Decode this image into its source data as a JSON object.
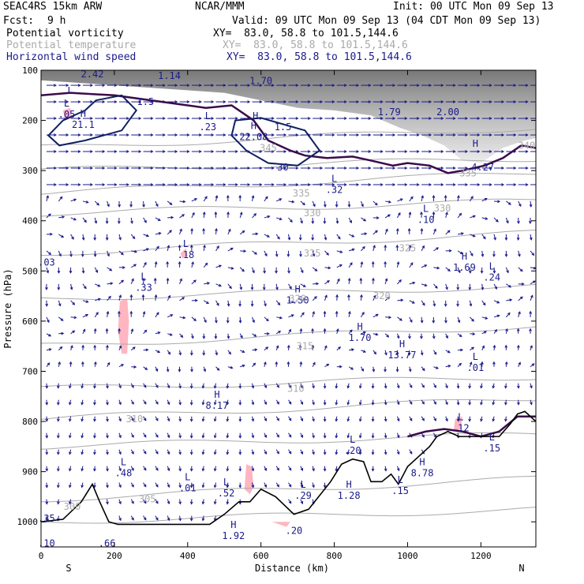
{
  "header": {
    "model": "SEAC4RS 15km ARW",
    "org": "NCAR/MMM",
    "init": "Init: 00 UTC Mon 09 Sep 13",
    "fcst_label": "Fcst:",
    "fcst_value": "9 h",
    "valid": "Valid: 09 UTC Mon 09 Sep 13 (04 CDT Mon 09 Sep 13)"
  },
  "fields": [
    {
      "name": "Potential vorticity",
      "xy": "XY=  83.0, 58.8 to 101.5,144.6",
      "color": "#000000"
    },
    {
      "name": "Potential temperature",
      "xy": "XY=  83.0, 58.8 to 101.5,144.6",
      "color": "#aaaaaa"
    },
    {
      "name": "Horizontal wind speed",
      "xy": "XY=  83.0, 58.8 to 101.5,144.6",
      "color": "#1a1a8c"
    }
  ],
  "colors": {
    "pv_contour": "#3a0a4a",
    "theta": "#aaaaaa",
    "wind": "#1a1a8c",
    "terrain": "#000000",
    "shading_pink": "#ffb6c1",
    "shading_gray": "#a0a0a0"
  },
  "chart_data": {
    "type": "cross-section",
    "xlabel": "Distance (km)",
    "ylabel": "Pressure (hPa)",
    "x_ticks": [
      0,
      200,
      400,
      600,
      800,
      1000,
      1200
    ],
    "y_ticks": [
      100,
      200,
      300,
      400,
      500,
      600,
      700,
      800,
      900,
      1000
    ],
    "xlim": [
      0,
      1350
    ],
    "ylim": [
      1050,
      100
    ],
    "endpoints": {
      "left": "S",
      "right": "N"
    },
    "theta_labels": [
      {
        "text": "345",
        "x": 620,
        "p": 255
      },
      {
        "text": "340",
        "x": 1325,
        "p": 250
      },
      {
        "text": "335",
        "x": 710,
        "p": 345
      },
      {
        "text": "335",
        "x": 1165,
        "p": 305
      },
      {
        "text": "330",
        "x": 740,
        "p": 385
      },
      {
        "text": "330",
        "x": 1095,
        "p": 375
      },
      {
        "text": "325",
        "x": 740,
        "p": 465
      },
      {
        "text": "325",
        "x": 1000,
        "p": 455
      },
      {
        "text": "320",
        "x": 700,
        "p": 555
      },
      {
        "text": "320",
        "x": 930,
        "p": 550
      },
      {
        "text": "315",
        "x": 720,
        "p": 650
      },
      {
        "text": "310",
        "x": 695,
        "p": 735
      },
      {
        "text": "310",
        "x": 255,
        "p": 795
      },
      {
        "text": "305",
        "x": 290,
        "p": 955
      },
      {
        "text": "300",
        "x": 85,
        "p": 970
      }
    ],
    "extrema": [
      {
        "mark": "",
        "value": "2.42",
        "x": 140,
        "p": 105
      },
      {
        "mark": "",
        "value": "1.14",
        "x": 350,
        "p": 108
      },
      {
        "mark": "",
        "value": "1.70",
        "x": 600,
        "p": 118
      },
      {
        "mark": "L",
        "value": ".05",
        "x": 70,
        "p": 185
      },
      {
        "mark": "H",
        "value": "21.1",
        "x": 115,
        "p": 205
      },
      {
        "mark": "",
        "value": "1.5",
        "x": 285,
        "p": 160
      },
      {
        "mark": "L",
        "value": ".23",
        "x": 455,
        "p": 210
      },
      {
        "mark": "H",
        "value": "22.08",
        "x": 580,
        "p": 230
      },
      {
        "mark": "",
        "value": "1.5",
        "x": 660,
        "p": 210
      },
      {
        "mark": "",
        "value": "30",
        "x": 660,
        "p": 290
      },
      {
        "mark": "",
        "value": "1.79",
        "x": 950,
        "p": 180
      },
      {
        "mark": "",
        "value": "2.00",
        "x": 1110,
        "p": 180
      },
      {
        "mark": "",
        "value": "4.27",
        "x": 1205,
        "p": 290
      },
      {
        "mark": "L",
        "value": ".32",
        "x": 800,
        "p": 335
      },
      {
        "mark": "L",
        "value": ".10",
        "x": 1050,
        "p": 395
      },
      {
        "mark": "L",
        "value": ".18",
        "x": 395,
        "p": 465
      },
      {
        "mark": "L",
        "value": ".33",
        "x": 280,
        "p": 530
      },
      {
        "mark": "H",
        "value": "1.50",
        "x": 700,
        "p": 555
      },
      {
        "mark": "H",
        "value": "1.69",
        "x": 1155,
        "p": 490
      },
      {
        "mark": "L",
        "value": ".24",
        "x": 1230,
        "p": 510
      },
      {
        "mark": "H",
        "value": "1.70",
        "x": 870,
        "p": 630
      },
      {
        "mark": "H",
        "value": "13.77",
        "x": 985,
        "p": 665
      },
      {
        "mark": "L",
        "value": ".01",
        "x": 1185,
        "p": 690
      },
      {
        "mark": "H",
        "value": "8.17",
        "x": 480,
        "p": 765
      },
      {
        "mark": "L",
        "value": ".20",
        "x": 850,
        "p": 855
      },
      {
        "mark": "L",
        "value": ".48",
        "x": 225,
        "p": 900
      },
      {
        "mark": "L",
        "value": ".01",
        "x": 400,
        "p": 930
      },
      {
        "mark": "L",
        "value": ".52",
        "x": 505,
        "p": 940
      },
      {
        "mark": "L",
        "value": ".29",
        "x": 715,
        "p": 945
      },
      {
        "mark": "H",
        "value": "1.28",
        "x": 840,
        "p": 945
      },
      {
        "mark": "L",
        "value": ".15",
        "x": 980,
        "p": 935
      },
      {
        "mark": "H",
        "value": "8.78",
        "x": 1040,
        "p": 900
      },
      {
        "mark": "L",
        "value": ".15",
        "x": 1230,
        "p": 850
      },
      {
        "mark": "L",
        "value": ".12",
        "x": 1145,
        "p": 810
      },
      {
        "mark": "",
        "value": ".20",
        "x": 690,
        "p": 1015
      },
      {
        "mark": "H",
        "value": "1.92",
        "x": 525,
        "p": 1025
      },
      {
        "mark": "",
        "value": ".66",
        "x": 180,
        "p": 1040
      },
      {
        "mark": "",
        "value": ".10",
        "x": 15,
        "p": 1040
      },
      {
        "mark": "",
        "value": ".35",
        "x": 15,
        "p": 990
      },
      {
        "mark": "",
        "value": ".03",
        "x": 15,
        "p": 480
      },
      {
        "mark": "L",
        "value": "",
        "x": 80,
        "p": 160
      },
      {
        "mark": "H",
        "value": "",
        "x": 585,
        "p": 210
      },
      {
        "mark": "H",
        "value": "",
        "x": 1185,
        "p": 265
      }
    ],
    "terrain": [
      [
        0,
        1000
      ],
      [
        60,
        995
      ],
      [
        110,
        960
      ],
      [
        140,
        925
      ],
      [
        160,
        960
      ],
      [
        185,
        1000
      ],
      [
        210,
        1005
      ],
      [
        460,
        1005
      ],
      [
        500,
        985
      ],
      [
        540,
        960
      ],
      [
        570,
        960
      ],
      [
        600,
        935
      ],
      [
        640,
        950
      ],
      [
        690,
        985
      ],
      [
        730,
        975
      ],
      [
        790,
        920
      ],
      [
        820,
        885
      ],
      [
        850,
        875
      ],
      [
        880,
        880
      ],
      [
        900,
        920
      ],
      [
        930,
        920
      ],
      [
        955,
        905
      ],
      [
        975,
        925
      ],
      [
        1000,
        890
      ],
      [
        1030,
        870
      ],
      [
        1060,
        850
      ],
      [
        1080,
        830
      ],
      [
        1110,
        820
      ],
      [
        1140,
        830
      ],
      [
        1160,
        830
      ],
      [
        1200,
        830
      ],
      [
        1220,
        830
      ],
      [
        1250,
        830
      ],
      [
        1280,
        805
      ],
      [
        1300,
        785
      ],
      [
        1320,
        780
      ],
      [
        1335,
        790
      ],
      [
        1350,
        800
      ]
    ]
  }
}
